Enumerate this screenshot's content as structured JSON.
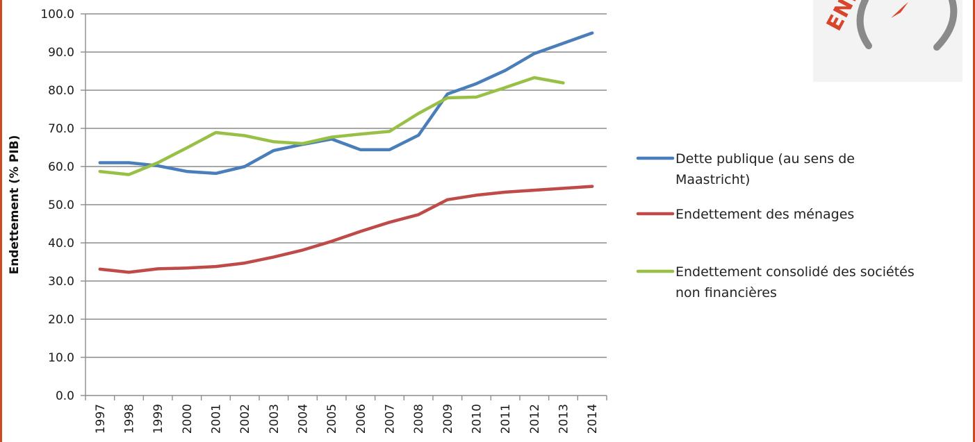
{
  "colors": {
    "frame": "#cc4a1f",
    "grid": "#8c8c8c",
    "axis": "#8c8c8c"
  },
  "logo": {
    "text": "ENE",
    "gauge_color": "#8a8a8a",
    "needle_color": "#d9452a"
  },
  "chart_data": {
    "type": "line",
    "title": "",
    "xlabel": "",
    "ylabel": "Endettement (% PIB)",
    "ylim": [
      0,
      100
    ],
    "yticks": [
      "0.0",
      "10.0",
      "20.0",
      "30.0",
      "40.0",
      "50.0",
      "60.0",
      "70.0",
      "80.0",
      "90.0",
      "100.0"
    ],
    "grid": true,
    "legend_position": "right",
    "categories": [
      "1997",
      "1998",
      "1999",
      "2000",
      "2001",
      "2002",
      "2003",
      "2004",
      "2005",
      "2006",
      "2007",
      "2008",
      "2009",
      "2010",
      "2011",
      "2012",
      "2013",
      "2014"
    ],
    "series": [
      {
        "name": "Dette publique (au sens de Maastricht)",
        "color": "#4a7ebb",
        "values": [
          61.0,
          61.0,
          60.2,
          58.7,
          58.2,
          60.0,
          64.2,
          65.8,
          67.2,
          64.4,
          64.4,
          68.2,
          79.0,
          81.7,
          85.2,
          89.6,
          92.3,
          95.0
        ]
      },
      {
        "name": "Endettement des ménages",
        "color": "#be4b48",
        "values": [
          33.1,
          32.3,
          33.2,
          33.4,
          33.8,
          34.7,
          36.3,
          38.1,
          40.4,
          43.0,
          45.4,
          47.4,
          51.3,
          52.5,
          53.3,
          53.8,
          54.3,
          54.8
        ]
      },
      {
        "name": "Endettement consolidé des sociétés non financières",
        "color": "#98c046",
        "values": [
          58.7,
          57.9,
          61.0,
          64.9,
          68.9,
          68.1,
          66.5,
          66.0,
          67.7,
          68.5,
          69.2,
          73.9,
          78.0,
          78.2,
          80.7,
          83.3,
          81.9,
          null
        ]
      }
    ]
  }
}
